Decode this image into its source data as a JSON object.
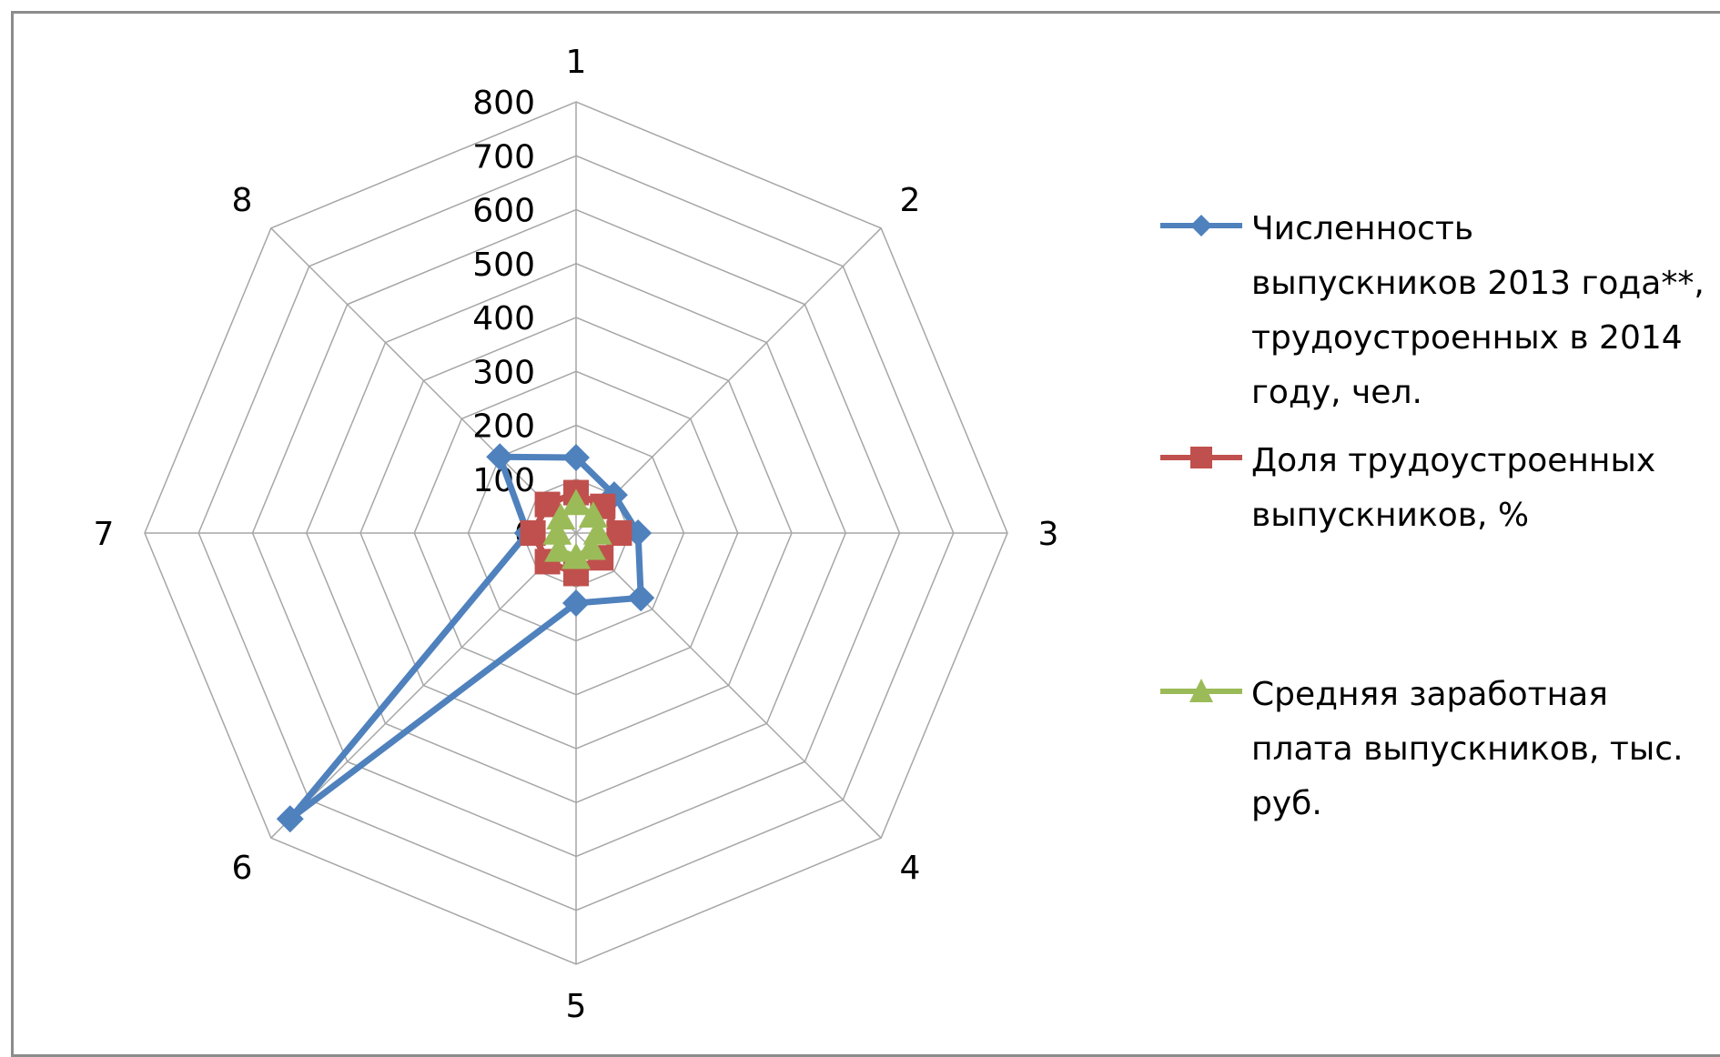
{
  "chart_data": {
    "type": "radar",
    "categories": [
      "1",
      "2",
      "3",
      "4",
      "5",
      "6",
      "7",
      "8"
    ],
    "radial_ticks": [
      "0",
      "100",
      "200",
      "300",
      "400",
      "500",
      "600",
      "700",
      "800"
    ],
    "rlim": [
      0,
      800
    ],
    "grid": true,
    "legend_position": "right",
    "series": [
      {
        "name": "Численность выпускников 2013 года**, трудоустроенных в 2014 году, чел.",
        "values": [
          140,
          100,
          115,
          170,
          130,
          750,
          90,
          200
        ],
        "color": "#4F81BD",
        "marker": "diamond"
      },
      {
        "name": "Доля трудоустроенных выпускников, %",
        "values": [
          75,
          70,
          80,
          65,
          75,
          75,
          80,
          75
        ],
        "color": "#C0504D",
        "marker": "square"
      },
      {
        "name": "Средняя заработная плата выпускников, тыс. руб.",
        "values": [
          55,
          45,
          40,
          40,
          45,
          45,
          35,
          40
        ],
        "color": "#9BBB59",
        "marker": "triangle"
      }
    ]
  }
}
